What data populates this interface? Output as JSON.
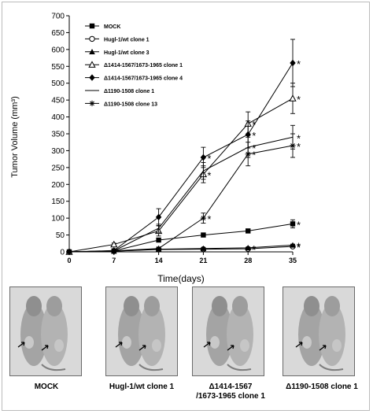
{
  "chart_data": {
    "type": "line",
    "ylabel": "Tumor Volume (mm³)",
    "xlabel": "Time(days)",
    "x": [
      0,
      7,
      14,
      21,
      28,
      35
    ],
    "xticks": [
      "0",
      "7",
      "14",
      "21",
      "28",
      "35"
    ],
    "ylim": [
      0,
      700
    ],
    "yticks": [
      "0",
      "50",
      "100",
      "150",
      "200",
      "250",
      "300",
      "350",
      "400",
      "450",
      "500",
      "550",
      "600",
      "650",
      "700"
    ],
    "grid": false,
    "legend_position": "top-left",
    "significance_mark": "*",
    "series": [
      {
        "name": "MOCK",
        "marker": "square-filled",
        "values": [
          0,
          3,
          35,
          50,
          62,
          83
        ],
        "errors": [
          0,
          1,
          5,
          6,
          6,
          12
        ]
      },
      {
        "name": "Hugl-1/wt clone 1",
        "marker": "circle-open",
        "values": [
          0,
          2,
          7,
          8,
          9,
          16
        ],
        "errors": [
          0,
          1,
          2,
          2,
          2,
          3
        ]
      },
      {
        "name": "Hugl-1/wt clone 3",
        "marker": "triangle-filled",
        "values": [
          0,
          2,
          8,
          10,
          12,
          20
        ],
        "errors": [
          0,
          1,
          2,
          2,
          2,
          3
        ]
      },
      {
        "name": "Δ1414-1567/1673-1965 clone 1",
        "marker": "triangle-open",
        "values": [
          0,
          22,
          62,
          230,
          380,
          455
        ],
        "errors": [
          0,
          4,
          15,
          25,
          35,
          45
        ]
      },
      {
        "name": "Δ1414-1567/1673-1965 clone 4",
        "marker": "diamond-filled",
        "values": [
          0,
          4,
          103,
          280,
          348,
          560
        ],
        "errors": [
          0,
          2,
          25,
          30,
          40,
          70
        ]
      },
      {
        "name": "Δ1190-1508 clone 1",
        "marker": "none",
        "values": [
          0,
          3,
          70,
          240,
          310,
          340
        ],
        "errors": [
          0,
          1,
          12,
          25,
          30,
          35
        ]
      },
      {
        "name": "Δ1190-1508 clone 13",
        "marker": "star",
        "values": [
          0,
          3,
          10,
          100,
          290,
          315
        ],
        "errors": [
          0,
          1,
          3,
          15,
          35,
          35
        ]
      }
    ],
    "significant_points": [
      {
        "series": 0,
        "x": 35
      },
      {
        "series": 1,
        "x": 35
      },
      {
        "series": 2,
        "x": 35
      },
      {
        "series": 1,
        "x": 28
      },
      {
        "series": 2,
        "x": 28
      },
      {
        "series": 3,
        "x": 21
      },
      {
        "series": 3,
        "x": 28
      },
      {
        "series": 3,
        "x": 35
      },
      {
        "series": 4,
        "x": 21
      },
      {
        "series": 4,
        "x": 28
      },
      {
        "series": 4,
        "x": 35
      },
      {
        "series": 5,
        "x": 28
      },
      {
        "series": 5,
        "x": 35
      },
      {
        "series": 6,
        "x": 21
      },
      {
        "series": 6,
        "x": 28
      },
      {
        "series": 6,
        "x": 35
      }
    ]
  },
  "photos": {
    "captions": [
      "MOCK",
      "Hugl-1/wt clone 1",
      "Δ1414-1567\n/1673-1965 clone 1",
      "Δ1190-1508 clone 1"
    ],
    "background_color": "#d9d9d9"
  }
}
